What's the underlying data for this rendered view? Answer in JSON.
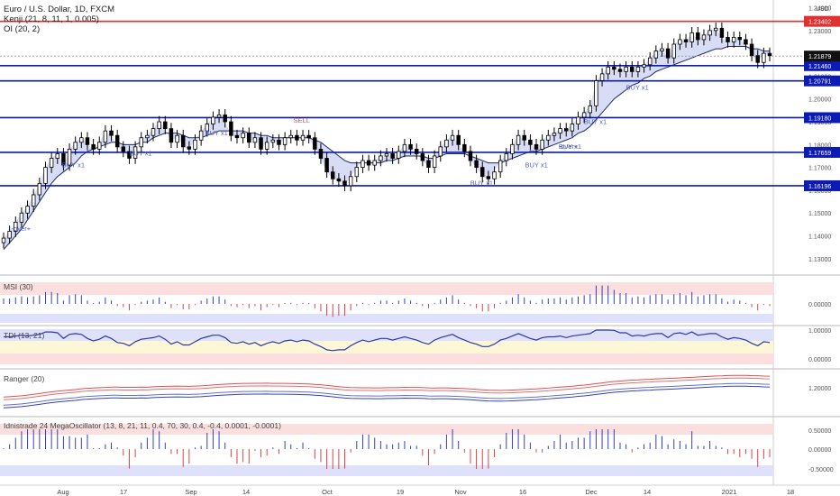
{
  "header": {
    "symbol": "Euro / U.S. Dollar, 1D, FXCM",
    "ind1": "Kenji (21, 8, 11, 1, 0.005)",
    "ind2": "OI (20, 2)",
    "currency": "USD"
  },
  "time_axis": [
    "Aug",
    "17",
    "Sep",
    "14",
    "Oct",
    "19",
    "Nov",
    "16",
    "Dec",
    "14",
    "2021",
    "18"
  ],
  "panes": {
    "msi": "MSI (30)",
    "tdi": "TDI (13, 21)",
    "ranger": "Ranger (20)",
    "mega": "Idnistrade 24 MegaOscillator (13, 8, 21, 11, 0.4, 70, 30, 0.4, -0.4, 0.0001, -0.0001)"
  },
  "colors": {
    "up": "#000000",
    "down": "#000000",
    "level_line": "#0d1bb5",
    "top_line": "#e03030",
    "cloud": "#c8cdf0",
    "signal_buy": "#5060c8",
    "signal_sell": "#e05050"
  },
  "chart_data": [
    {
      "type": "candlestick",
      "title": "Euro / U.S. Dollar, 1D, FXCM",
      "x_range": [
        "2020-07-20",
        "2021-01-18"
      ],
      "ylim": [
        1.124,
        1.241
      ],
      "y_ticks": [
        "1.24000",
        "1.23000",
        "1.22000",
        "1.21000",
        "1.20000",
        "1.19000",
        "1.18000",
        "1.17000",
        "1.16000",
        "1.15000",
        "1.14000",
        "1.13000"
      ],
      "last_price": "1.21879",
      "top_level": "1.23402",
      "levels": [
        "1.21460",
        "1.20791",
        "1.19180",
        "1.17659",
        "1.16196"
      ],
      "close": [
        1.139,
        1.142,
        1.146,
        1.15,
        1.153,
        1.158,
        1.163,
        1.17,
        1.174,
        1.176,
        1.171,
        1.178,
        1.181,
        1.183,
        1.18,
        1.178,
        1.181,
        1.186,
        1.184,
        1.179,
        1.177,
        1.174,
        1.179,
        1.183,
        1.184,
        1.187,
        1.19,
        1.187,
        1.181,
        1.184,
        1.179,
        1.178,
        1.182,
        1.186,
        1.189,
        1.192,
        1.193,
        1.19,
        1.184,
        1.183,
        1.185,
        1.181,
        1.183,
        1.178,
        1.181,
        1.182,
        1.18,
        1.183,
        1.184,
        1.182,
        1.184,
        1.183,
        1.178,
        1.174,
        1.168,
        1.165,
        1.164,
        1.162,
        1.166,
        1.17,
        1.173,
        1.171,
        1.173,
        1.175,
        1.176,
        1.174,
        1.177,
        1.18,
        1.178,
        1.176,
        1.173,
        1.17,
        1.175,
        1.179,
        1.182,
        1.184,
        1.18,
        1.177,
        1.173,
        1.17,
        1.166,
        1.165,
        1.168,
        1.173,
        1.176,
        1.18,
        1.184,
        1.182,
        1.18,
        1.178,
        1.182,
        1.184,
        1.185,
        1.187,
        1.186,
        1.189,
        1.192,
        1.194,
        1.197,
        1.208,
        1.211,
        1.214,
        1.213,
        1.212,
        1.214,
        1.212,
        1.214,
        1.215,
        1.218,
        1.221,
        1.222,
        1.218,
        1.224,
        1.226,
        1.225,
        1.229,
        1.226,
        1.228,
        1.23,
        1.231,
        1.227,
        1.225,
        1.227,
        1.226,
        1.224,
        1.219,
        1.216,
        1.22,
        1.219
      ],
      "kenji_line": [
        1.134,
        1.137,
        1.14,
        1.143,
        1.147,
        1.151,
        1.155,
        1.159,
        1.163,
        1.166,
        1.168,
        1.17,
        1.172,
        1.175,
        1.177,
        1.178,
        1.179,
        1.18,
        1.181,
        1.181,
        1.18,
        1.18,
        1.18,
        1.181,
        1.181,
        1.183,
        1.184,
        1.185,
        1.185,
        1.185,
        1.184,
        1.183,
        1.183,
        1.183,
        1.184,
        1.185,
        1.186,
        1.186,
        1.186,
        1.186,
        1.186,
        1.185,
        1.185,
        1.184,
        1.184,
        1.183,
        1.183,
        1.183,
        1.183,
        1.183,
        1.183,
        1.183,
        1.182,
        1.181,
        1.179,
        1.177,
        1.175,
        1.173,
        1.172,
        1.172,
        1.172,
        1.172,
        1.172,
        1.172,
        1.173,
        1.173,
        1.174,
        1.175,
        1.175,
        1.175,
        1.175,
        1.174,
        1.174,
        1.175,
        1.176,
        1.176,
        1.176,
        1.176,
        1.175,
        1.174,
        1.173,
        1.172,
        1.172,
        1.172,
        1.173,
        1.174,
        1.175,
        1.176,
        1.177,
        1.177,
        1.178,
        1.179,
        1.18,
        1.181,
        1.182,
        1.183,
        1.185,
        1.186,
        1.188,
        1.191,
        1.194,
        1.197,
        1.2,
        1.202,
        1.204,
        1.206,
        1.207,
        1.209,
        1.21,
        1.212,
        1.213,
        1.214,
        1.215,
        1.216,
        1.217,
        1.218,
        1.219,
        1.22,
        1.221,
        1.222,
        1.222,
        1.223,
        1.223,
        1.223,
        1.223,
        1.222,
        1.222,
        1.221,
        1.221
      ],
      "signals": [
        {
          "text": "BUY x1",
          "date": "2020-08-05"
        },
        {
          "text": "BUY x1",
          "date": "2020-08-21"
        },
        {
          "text": "BUY x1",
          "date": "2020-09-08"
        },
        {
          "text": "SELL",
          "date": "2020-09-29"
        },
        {
          "text": "BUY x1",
          "date": "2020-11-10"
        },
        {
          "text": "BUY x1",
          "date": "2020-11-23"
        },
        {
          "text": "BUY x1",
          "date": "2020-12-01"
        },
        {
          "text": "BUY x1",
          "date": "2020-12-07"
        },
        {
          "text": "BUY x1",
          "date": "2020-12-17"
        },
        {
          "text": "-over+",
          "date": "2020-07-24"
        },
        {
          "text": "-over+",
          "date": "2020-12-01"
        }
      ]
    },
    {
      "type": "bar",
      "title": "MSI (30)",
      "y_ticks": [
        "0.00000"
      ],
      "ylim": [
        -1,
        1
      ]
    },
    {
      "type": "line",
      "title": "TDI (13, 21)",
      "y_ticks": [
        "1.00000",
        "0.00000"
      ],
      "ylim": [
        -0.3,
        1.2
      ]
    },
    {
      "type": "line",
      "title": "Ranger (20)",
      "y_ticks": [
        "1.20000"
      ],
      "ylim": [
        1.05,
        1.35
      ]
    },
    {
      "type": "bar",
      "title": "Idnistrade 24 MegaOscillator",
      "y_ticks": [
        "0.50000",
        "0.00000",
        "-0.50000"
      ],
      "ylim": [
        -0.65,
        0.65
      ]
    }
  ]
}
